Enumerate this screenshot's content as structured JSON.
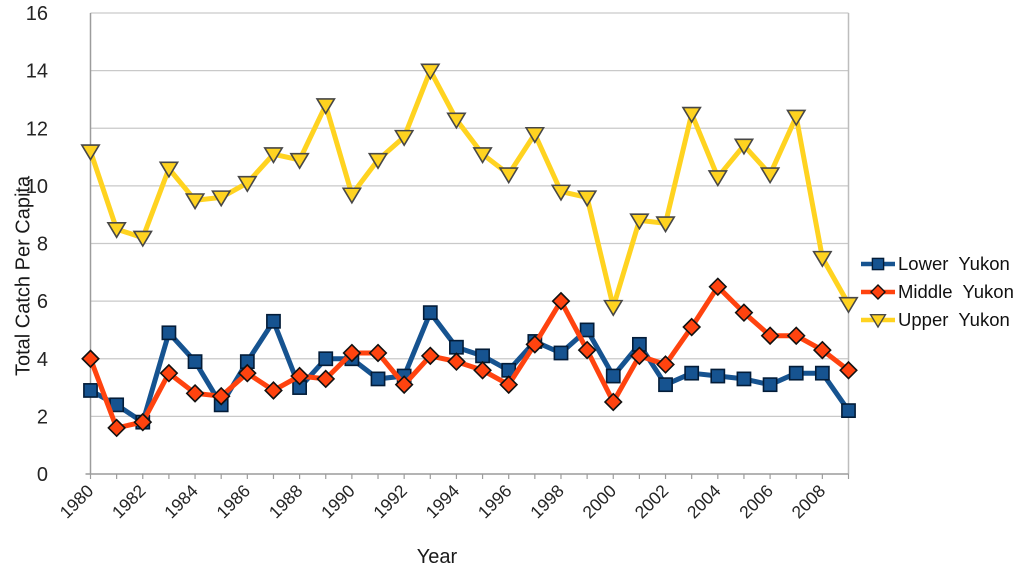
{
  "chart_data": {
    "type": "line",
    "title": "",
    "xlabel": "Year",
    "ylabel": "Total Catch Per Capita",
    "x": [
      1980,
      1981,
      1982,
      1983,
      1984,
      1985,
      1986,
      1987,
      1988,
      1989,
      1990,
      1991,
      1992,
      1993,
      1994,
      1995,
      1996,
      1997,
      1998,
      1999,
      2000,
      2001,
      2002,
      2003,
      2004,
      2005,
      2006,
      2007,
      2008,
      2009
    ],
    "x_tick_labels": [
      "1980",
      "1982",
      "1984",
      "1986",
      "1988",
      "1990",
      "1992",
      "1994",
      "1996",
      "1998",
      "2000",
      "2002",
      "2004",
      "2006",
      "2008"
    ],
    "y_ticks": [
      0,
      2,
      4,
      6,
      8,
      10,
      12,
      14,
      16
    ],
    "ylim": [
      0,
      16
    ],
    "grid": "horizontal",
    "legend_position": "right",
    "colors": {
      "grid": "#c9c9c9",
      "axis": "#9c9c9c",
      "border": "#bdbdbd",
      "tick_text": "#242424"
    },
    "series": [
      {
        "name": "Lower  Yukon",
        "marker": "square",
        "color": "#165390",
        "marker_stroke": "#031c38",
        "values": [
          2.9,
          2.4,
          1.8,
          4.9,
          3.9,
          2.4,
          3.9,
          5.3,
          3.0,
          4.0,
          4.0,
          3.3,
          3.4,
          5.6,
          4.4,
          4.1,
          3.6,
          4.6,
          4.2,
          5.0,
          3.4,
          4.5,
          3.1,
          3.5,
          3.4,
          3.3,
          3.1,
          3.5,
          3.5,
          2.2
        ]
      },
      {
        "name": "Middle  Yukon",
        "marker": "diamond",
        "color": "#ff430f",
        "marker_stroke": "#111111",
        "values": [
          4.0,
          1.6,
          1.8,
          3.5,
          2.8,
          2.7,
          3.5,
          2.9,
          3.4,
          3.3,
          4.2,
          4.2,
          3.1,
          4.1,
          3.9,
          3.6,
          3.1,
          4.5,
          6.0,
          4.3,
          2.5,
          4.1,
          3.8,
          5.1,
          6.5,
          5.6,
          4.8,
          4.8,
          4.3,
          3.6
        ]
      },
      {
        "name": "Upper  Yukon",
        "marker": "triangle-down",
        "color": "#ffd320",
        "marker_stroke": "#474747",
        "values": [
          11.2,
          8.5,
          8.2,
          10.6,
          9.5,
          9.6,
          10.1,
          11.1,
          10.9,
          12.8,
          9.7,
          10.9,
          11.7,
          14.0,
          12.3,
          11.1,
          10.4,
          11.8,
          9.8,
          9.6,
          5.8,
          8.8,
          8.7,
          12.5,
          10.3,
          11.4,
          10.4,
          12.4,
          7.5,
          5.9
        ]
      }
    ]
  }
}
